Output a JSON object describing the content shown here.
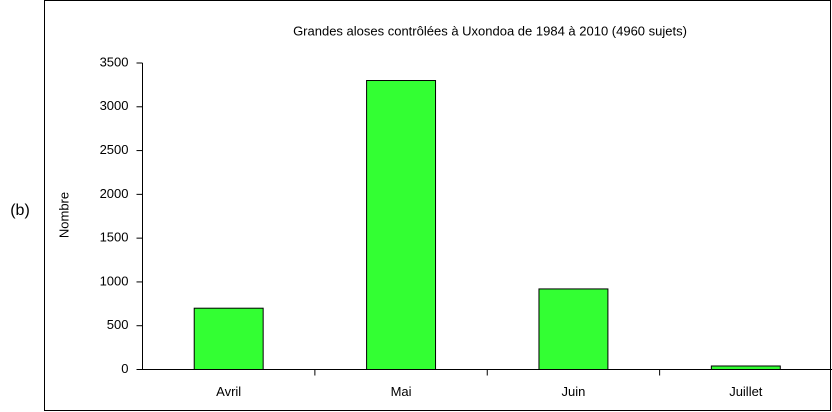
{
  "panel_label": "(b)",
  "chart_data": {
    "type": "bar",
    "title": "Grandes aloses contrôlées à Uxondoa de 1984 à 2010 (4960 sujets)",
    "y_label": "Nombre",
    "categories": [
      "Avril",
      "Mai",
      "Juin",
      "Juillet"
    ],
    "values": [
      700,
      3300,
      920,
      40
    ],
    "color": "#33ff33",
    "ylim": [
      0,
      3500
    ],
    "yticks": [
      0,
      500,
      1000,
      1500,
      2000,
      2500,
      3000,
      3500
    ],
    "grid": false
  }
}
